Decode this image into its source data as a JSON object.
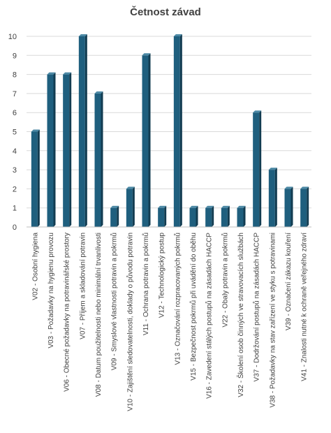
{
  "chart_data": {
    "type": "bar",
    "title": "Četnost závad",
    "xlabel": "",
    "ylabel": "",
    "ylim": [
      0,
      10
    ],
    "yticks": [
      0,
      1,
      2,
      3,
      4,
      5,
      6,
      7,
      8,
      9,
      10
    ],
    "grid": true,
    "legend": "none",
    "colors": {
      "bar_front": "#1f5f7e",
      "bar_side": "#123c51",
      "bar_top": "#4c89a5"
    },
    "categories": [
      "V02 - Osobní hygiena",
      "V03 - Požadavky na hygienu provozu",
      "V06 - Obecné požadavky na potravinářské prostory",
      "V07 - Příjem a skladování potravin",
      "V08 - Datum použitelnosti nebo minimální trvanlivosti",
      "V09 - Smyslové vlastnosti potravin a pokrmů",
      "V10 - Zajištění sledovatelnosti, doklady o původu potravin",
      "V11 - Ochrana potravin a pokrmů",
      "V12 - Technologický postup",
      "V13 - Označování rozpracovaných pokrmů",
      "V15 - Bezpečnost pokrmů při uvádění do oběhu",
      "V16 - Zavedení stálých postupů na zásadách HACCP",
      "V22 - Obaly potravin a pokrmů",
      "V32 - Školení osob činných ve stravovacích službách",
      "V37 - Dodržování postupů na zásadách HACCP",
      "V38 - Požadavky na stav zařízení ve styku s potravinami",
      "V39 - Označení zákazu kouření",
      "V41 - Znalosti nutné k ochraně veřejného zdraví"
    ],
    "values": [
      5,
      8,
      8,
      10,
      7,
      1,
      2,
      9,
      1,
      10,
      1,
      1,
      1,
      1,
      6,
      3,
      2,
      2
    ]
  }
}
